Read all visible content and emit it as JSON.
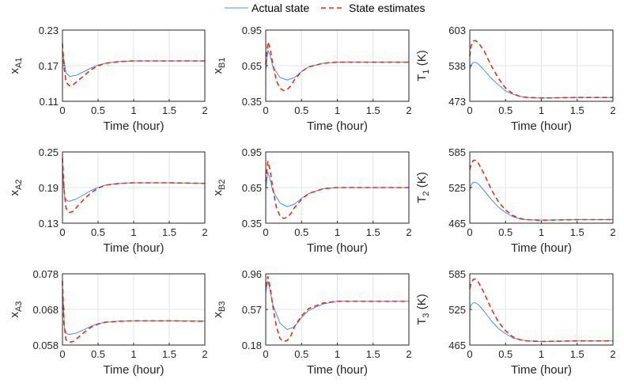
{
  "legend": {
    "actual_label": "Actual state",
    "estimate_label": "State estimates"
  },
  "colors": {
    "actual": "#4a90e2",
    "estimate": "#d9331a"
  },
  "chart_data": [
    {
      "type": "line",
      "id": "xA1",
      "ylabel_main": "x",
      "ylabel_sub": "A1",
      "ylabel_tail": "",
      "xlabel": "Time (hour)",
      "xlim": [
        0,
        2
      ],
      "ylim": [
        0.11,
        0.23
      ],
      "xticks": [
        "0",
        "0.5",
        "1",
        "1.5",
        "2"
      ],
      "xtick_values": [
        0,
        0.5,
        1,
        1.5,
        2
      ],
      "yticks": [
        "0.11",
        "0.17",
        "0.23"
      ],
      "ytick_values": [
        0.11,
        0.17,
        0.23
      ],
      "series": [
        {
          "name": "Actual state",
          "x": [
            0,
            0.05,
            0.1,
            0.2,
            0.3,
            0.4,
            0.5,
            0.6,
            0.8,
            1.0,
            1.5,
            2.0
          ],
          "y": [
            0.195,
            0.158,
            0.152,
            0.154,
            0.16,
            0.166,
            0.171,
            0.174,
            0.177,
            0.178,
            0.178,
            0.178
          ]
        },
        {
          "name": "State estimates",
          "x": [
            0,
            0.02,
            0.05,
            0.1,
            0.15,
            0.2,
            0.3,
            0.4,
            0.5,
            0.6,
            0.8,
            1.0,
            1.5,
            2.0
          ],
          "y": [
            0.207,
            0.17,
            0.142,
            0.136,
            0.138,
            0.143,
            0.153,
            0.163,
            0.17,
            0.174,
            0.177,
            0.178,
            0.178,
            0.178
          ]
        }
      ]
    },
    {
      "type": "line",
      "id": "xB1",
      "ylabel_main": "x",
      "ylabel_sub": "B1",
      "ylabel_tail": "",
      "xlabel": "Time (hour)",
      "xlim": [
        0,
        2
      ],
      "ylim": [
        0.35,
        0.95
      ],
      "xticks": [
        "0",
        "0.5",
        "1",
        "1.5",
        "2"
      ],
      "xtick_values": [
        0,
        0.5,
        1,
        1.5,
        2
      ],
      "yticks": [
        "0.35",
        "0.65",
        "0.95"
      ],
      "ytick_values": [
        0.35,
        0.65,
        0.95
      ],
      "series": [
        {
          "name": "Actual state",
          "x": [
            0,
            0.03,
            0.06,
            0.1,
            0.2,
            0.3,
            0.4,
            0.5,
            0.6,
            0.8,
            1.0,
            1.5,
            2.0
          ],
          "y": [
            0.6,
            0.78,
            0.74,
            0.64,
            0.55,
            0.53,
            0.55,
            0.6,
            0.64,
            0.67,
            0.68,
            0.68,
            0.68
          ]
        },
        {
          "name": "State estimates",
          "x": [
            0,
            0.03,
            0.06,
            0.1,
            0.15,
            0.2,
            0.25,
            0.3,
            0.35,
            0.4,
            0.5,
            0.6,
            0.8,
            1.0,
            1.5,
            2.0
          ],
          "y": [
            0.66,
            0.85,
            0.8,
            0.66,
            0.52,
            0.46,
            0.44,
            0.45,
            0.48,
            0.53,
            0.6,
            0.64,
            0.67,
            0.68,
            0.68,
            0.68
          ]
        }
      ]
    },
    {
      "type": "line",
      "id": "T1",
      "ylabel_main": "T",
      "ylabel_sub": "1",
      "ylabel_tail": " (K)",
      "xlabel": "Time (hour)",
      "xlim": [
        0,
        2
      ],
      "ylim": [
        473,
        603
      ],
      "xticks": [
        "0",
        "0.5",
        "1",
        "1.5",
        "2"
      ],
      "xtick_values": [
        0,
        0.5,
        1,
        1.5,
        2
      ],
      "yticks": [
        "473",
        "538",
        "603"
      ],
      "ytick_values": [
        473,
        538,
        603
      ],
      "series": [
        {
          "name": "Actual state",
          "x": [
            0,
            0.02,
            0.05,
            0.08,
            0.12,
            0.2,
            0.3,
            0.4,
            0.5,
            0.6,
            0.7,
            0.8,
            1.0,
            1.5,
            2.0
          ],
          "y": [
            530,
            540,
            544,
            544,
            541,
            530,
            515,
            503,
            492,
            486,
            482,
            480,
            479,
            480,
            480
          ]
        },
        {
          "name": "State estimates",
          "x": [
            0,
            0.02,
            0.05,
            0.08,
            0.12,
            0.2,
            0.3,
            0.4,
            0.5,
            0.6,
            0.7,
            0.8,
            1.0,
            1.5,
            2.0
          ],
          "y": [
            555,
            575,
            583,
            584,
            580,
            565,
            538,
            515,
            497,
            487,
            482,
            480,
            479,
            480,
            480
          ]
        }
      ]
    },
    {
      "type": "line",
      "id": "xA2",
      "ylabel_main": "x",
      "ylabel_sub": "A2",
      "ylabel_tail": "",
      "xlabel": "Time (hour)",
      "xlim": [
        0,
        2
      ],
      "ylim": [
        0.13,
        0.25
      ],
      "xticks": [
        "0",
        "0.5",
        "1",
        "1.5",
        "2"
      ],
      "xtick_values": [
        0,
        0.5,
        1,
        1.5,
        2
      ],
      "yticks": [
        "0.13",
        "0.19",
        "0.25"
      ],
      "ytick_values": [
        0.13,
        0.19,
        0.25
      ],
      "series": [
        {
          "name": "Actual state",
          "x": [
            0,
            0.03,
            0.06,
            0.1,
            0.2,
            0.3,
            0.4,
            0.5,
            0.6,
            0.8,
            1.0,
            1.5,
            2.0
          ],
          "y": [
            0.225,
            0.175,
            0.168,
            0.167,
            0.171,
            0.178,
            0.185,
            0.19,
            0.194,
            0.197,
            0.198,
            0.198,
            0.197
          ]
        },
        {
          "name": "State estimates",
          "x": [
            0,
            0.02,
            0.05,
            0.1,
            0.15,
            0.2,
            0.3,
            0.4,
            0.5,
            0.6,
            0.8,
            1.0,
            1.5,
            2.0
          ],
          "y": [
            0.24,
            0.19,
            0.155,
            0.148,
            0.15,
            0.157,
            0.17,
            0.181,
            0.189,
            0.194,
            0.197,
            0.198,
            0.198,
            0.197
          ]
        }
      ]
    },
    {
      "type": "line",
      "id": "xB2",
      "ylabel_main": "x",
      "ylabel_sub": "B2",
      "ylabel_tail": "",
      "xlabel": "Time (hour)",
      "xlim": [
        0,
        2
      ],
      "ylim": [
        0.35,
        0.95
      ],
      "xticks": [
        "0",
        "0.5",
        "1",
        "1.5",
        "2"
      ],
      "xtick_values": [
        0,
        0.5,
        1,
        1.5,
        2
      ],
      "yticks": [
        "0.35",
        "0.65",
        "0.95"
      ],
      "ytick_values": [
        0.35,
        0.65,
        0.95
      ],
      "series": [
        {
          "name": "Actual state",
          "x": [
            0,
            0.03,
            0.06,
            0.1,
            0.2,
            0.3,
            0.4,
            0.5,
            0.6,
            0.8,
            1.0,
            1.5,
            2.0
          ],
          "y": [
            0.63,
            0.78,
            0.72,
            0.62,
            0.52,
            0.49,
            0.51,
            0.56,
            0.6,
            0.64,
            0.65,
            0.65,
            0.65
          ]
        },
        {
          "name": "State estimates",
          "x": [
            0,
            0.03,
            0.06,
            0.1,
            0.15,
            0.2,
            0.25,
            0.3,
            0.35,
            0.4,
            0.5,
            0.6,
            0.8,
            1.0,
            1.5,
            2.0
          ],
          "y": [
            0.7,
            0.87,
            0.8,
            0.64,
            0.48,
            0.41,
            0.39,
            0.4,
            0.43,
            0.48,
            0.55,
            0.6,
            0.64,
            0.65,
            0.65,
            0.65
          ]
        }
      ]
    },
    {
      "type": "line",
      "id": "T2",
      "ylabel_main": "T",
      "ylabel_sub": "2",
      "ylabel_tail": " (K)",
      "xlabel": "Time (hour)",
      "xlim": [
        0,
        2
      ],
      "ylim": [
        465,
        585
      ],
      "xticks": [
        "0",
        "0.5",
        "1",
        "1.5",
        "2"
      ],
      "xtick_values": [
        0,
        0.5,
        1,
        1.5,
        2
      ],
      "yticks": [
        "465",
        "525",
        "585"
      ],
      "ytick_values": [
        465,
        525,
        585
      ],
      "series": [
        {
          "name": "Actual state",
          "x": [
            0,
            0.02,
            0.05,
            0.08,
            0.12,
            0.2,
            0.3,
            0.4,
            0.5,
            0.6,
            0.7,
            0.8,
            1.0,
            1.5,
            2.0
          ],
          "y": [
            520,
            530,
            534,
            534,
            531,
            520,
            505,
            492,
            483,
            476,
            472,
            471,
            470,
            471,
            471
          ]
        },
        {
          "name": "State estimates",
          "x": [
            0,
            0.02,
            0.05,
            0.08,
            0.12,
            0.2,
            0.3,
            0.4,
            0.5,
            0.6,
            0.7,
            0.8,
            1.0,
            1.5,
            2.0
          ],
          "y": [
            555,
            565,
            571,
            571,
            566,
            548,
            522,
            501,
            487,
            478,
            473,
            471,
            470,
            471,
            471
          ]
        }
      ]
    },
    {
      "type": "line",
      "id": "xA3",
      "ylabel_main": "x",
      "ylabel_sub": "A3",
      "ylabel_tail": "",
      "xlabel": "Time (hour)",
      "xlim": [
        0,
        2
      ],
      "ylim": [
        0.058,
        0.078
      ],
      "xticks": [
        "0",
        "0.5",
        "1",
        "1.5",
        "2"
      ],
      "xtick_values": [
        0,
        0.5,
        1,
        1.5,
        2
      ],
      "yticks": [
        "0.058",
        "0.068",
        "0.078"
      ],
      "ytick_values": [
        0.058,
        0.068,
        0.078
      ],
      "series": [
        {
          "name": "Actual state",
          "x": [
            0,
            0.03,
            0.06,
            0.1,
            0.2,
            0.3,
            0.4,
            0.5,
            0.6,
            0.8,
            1.0,
            1.5,
            2.0
          ],
          "y": [
            0.074,
            0.0625,
            0.0612,
            0.061,
            0.0614,
            0.0623,
            0.0633,
            0.064,
            0.0644,
            0.0647,
            0.0648,
            0.0648,
            0.0647
          ]
        },
        {
          "name": "State estimates",
          "x": [
            0,
            0.02,
            0.05,
            0.1,
            0.15,
            0.2,
            0.3,
            0.4,
            0.5,
            0.6,
            0.8,
            1.0,
            1.5,
            2.0
          ],
          "y": [
            0.076,
            0.064,
            0.0595,
            0.0588,
            0.059,
            0.0598,
            0.0615,
            0.063,
            0.0639,
            0.0644,
            0.0647,
            0.0648,
            0.0648,
            0.0647
          ]
        }
      ]
    },
    {
      "type": "line",
      "id": "xB3",
      "ylabel_main": "x",
      "ylabel_sub": "B3",
      "ylabel_tail": "",
      "xlabel": "Time (hour)",
      "xlim": [
        0,
        2
      ],
      "ylim": [
        0.18,
        0.96
      ],
      "xticks": [
        "0",
        "0.5",
        "1",
        "1.5",
        "2"
      ],
      "xtick_values": [
        0,
        0.5,
        1,
        1.5,
        2
      ],
      "yticks": [
        "0.18",
        "0.57",
        "0.96"
      ],
      "ytick_values": [
        0.18,
        0.57,
        0.96
      ],
      "series": [
        {
          "name": "Actual state",
          "x": [
            0,
            0.03,
            0.06,
            0.1,
            0.2,
            0.3,
            0.4,
            0.5,
            0.6,
            0.8,
            1.0,
            1.5,
            2.0
          ],
          "y": [
            0.75,
            0.88,
            0.78,
            0.62,
            0.42,
            0.35,
            0.38,
            0.48,
            0.56,
            0.63,
            0.66,
            0.66,
            0.66
          ]
        },
        {
          "name": "State estimates",
          "x": [
            0,
            0.03,
            0.06,
            0.1,
            0.15,
            0.2,
            0.25,
            0.3,
            0.35,
            0.4,
            0.5,
            0.6,
            0.8,
            1.0,
            1.5,
            2.0
          ],
          "y": [
            0.82,
            0.93,
            0.82,
            0.6,
            0.38,
            0.25,
            0.22,
            0.23,
            0.28,
            0.38,
            0.5,
            0.58,
            0.64,
            0.66,
            0.66,
            0.66
          ]
        }
      ]
    },
    {
      "type": "line",
      "id": "T3",
      "ylabel_main": "T",
      "ylabel_sub": "3",
      "ylabel_tail": " (K)",
      "xlabel": "Time (hour)",
      "xlim": [
        0,
        2
      ],
      "ylim": [
        465,
        585
      ],
      "xticks": [
        "0",
        "0.5",
        "1",
        "1.5",
        "2"
      ],
      "xtick_values": [
        0,
        0.5,
        1,
        1.5,
        2
      ],
      "yticks": [
        "465",
        "525",
        "585"
      ],
      "ytick_values": [
        465,
        525,
        585
      ],
      "series": [
        {
          "name": "Actual state",
          "x": [
            0,
            0.02,
            0.05,
            0.08,
            0.12,
            0.2,
            0.3,
            0.4,
            0.5,
            0.6,
            0.7,
            0.8,
            1.0,
            1.5,
            2.0
          ],
          "y": [
            525,
            533,
            536,
            536,
            533,
            522,
            506,
            493,
            484,
            477,
            474,
            472,
            471,
            472,
            472
          ]
        },
        {
          "name": "State estimates",
          "x": [
            0,
            0.02,
            0.05,
            0.08,
            0.12,
            0.2,
            0.3,
            0.4,
            0.5,
            0.6,
            0.7,
            0.8,
            1.0,
            1.5,
            2.0
          ],
          "y": [
            560,
            570,
            576,
            576,
            571,
            553,
            526,
            504,
            489,
            479,
            474,
            472,
            471,
            472,
            472
          ]
        }
      ]
    }
  ]
}
